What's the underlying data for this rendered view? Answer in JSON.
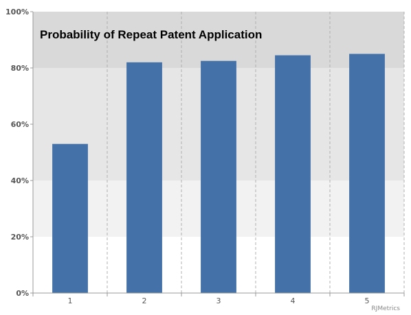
{
  "chart_data": {
    "type": "bar",
    "title": "Probability of Repeat Patent Application",
    "categories": [
      "1",
      "2",
      "3",
      "4",
      "5"
    ],
    "values": [
      53,
      82,
      82.5,
      84.5,
      85
    ],
    "xlabel": "",
    "ylabel": "",
    "ylim": [
      0,
      100
    ],
    "yticks": [
      "0%",
      "20%",
      "40%",
      "60%",
      "80%",
      "100%"
    ],
    "ytick_values": [
      0,
      20,
      40,
      60,
      80,
      100
    ],
    "grid": true,
    "bar_color": "#4472a8",
    "band_colors": [
      "#ffffff",
      "#f2f2f2",
      "#e6e6e6",
      "#e6e6e6",
      "#d9d9d9"
    ]
  },
  "watermark": "RJMetrics"
}
